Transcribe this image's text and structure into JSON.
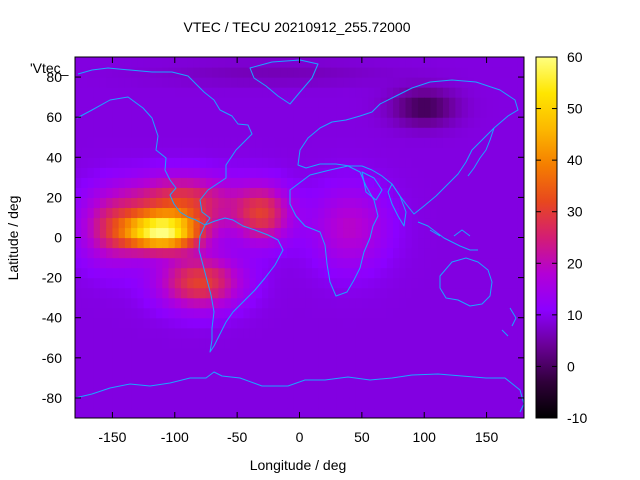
{
  "chart_data": {
    "type": "heatmap",
    "title": "VTEC / TECU 20210912_255.72000",
    "xlabel": "Longitude / deg",
    "ylabel": "Latitude / deg",
    "legend_key": "'Vtec_",
    "xlim": [
      -180,
      180
    ],
    "ylim": [
      -90,
      90
    ],
    "x_ticks": [
      -150,
      -100,
      -50,
      0,
      50,
      100,
      150
    ],
    "y_ticks": [
      -80,
      -60,
      -40,
      -20,
      0,
      20,
      40,
      60,
      80
    ],
    "colorbar": {
      "range": [
        -10,
        60
      ],
      "ticks": [
        -10,
        0,
        10,
        20,
        30,
        40,
        50,
        60
      ],
      "palette": [
        "#000000",
        "#30003a",
        "#6a0096",
        "#8c00ff",
        "#b300d6",
        "#d41d74",
        "#e8481e",
        "#f57e00",
        "#fcb800",
        "#ffe600",
        "#ffff80"
      ]
    },
    "background_value": 9,
    "features": [
      {
        "name": "equatorial-anomaly-peak",
        "lon": -110,
        "lat": 3,
        "value": 55
      },
      {
        "name": "americas-crest",
        "lon": -95,
        "lat": 18,
        "value": 47
      },
      {
        "name": "south-america-lobe",
        "lon": -80,
        "lat": -22,
        "value": 40
      },
      {
        "name": "atlantic-crest",
        "lon": -30,
        "lat": 12,
        "value": 42
      },
      {
        "name": "pacific-tail",
        "lon": -150,
        "lat": 5,
        "value": 33
      },
      {
        "name": "africa-shoulder",
        "lon": 40,
        "lat": 5,
        "value": 20
      },
      {
        "name": "siberia-minimum",
        "lon": 100,
        "lat": 65,
        "value": -1
      },
      {
        "name": "polar-north-low",
        "lon": -20,
        "lat": 82,
        "value": 5
      }
    ]
  }
}
